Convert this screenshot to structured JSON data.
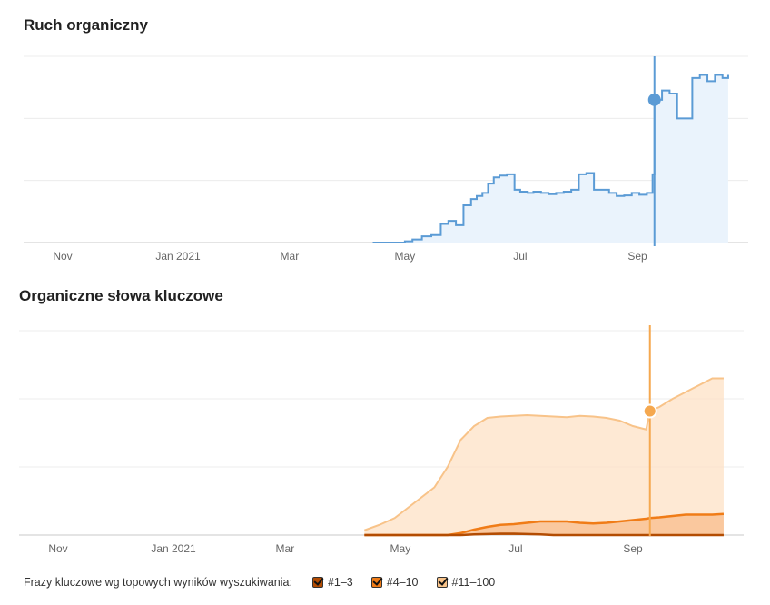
{
  "chart_data": [
    {
      "type": "area",
      "title": "Ruch organiczny",
      "x_ticks": [
        "Nov",
        "Jan 2021",
        "Mar",
        "May",
        "Jul",
        "Sep"
      ],
      "grid": true,
      "y_range": [
        0,
        3
      ],
      "colors": {
        "line": "#5b9bd5",
        "fill": "#eaf3fc"
      },
      "highlight": {
        "date": "2021-09-10",
        "value": 2.3
      },
      "series": [
        {
          "x": [
            "2021-04-14",
            "2021-05-01",
            "2021-05-05",
            "2021-05-10",
            "2021-05-15",
            "2021-05-20",
            "2021-05-24",
            "2021-05-28",
            "2021-06-01",
            "2021-06-05",
            "2021-06-08",
            "2021-06-11",
            "2021-06-14",
            "2021-06-17",
            "2021-06-20",
            "2021-06-24",
            "2021-06-28",
            "2021-07-01",
            "2021-07-05",
            "2021-07-08",
            "2021-07-12",
            "2021-07-16",
            "2021-07-20",
            "2021-07-24",
            "2021-07-28",
            "2021-08-01",
            "2021-08-05",
            "2021-08-09",
            "2021-08-13",
            "2021-08-17",
            "2021-08-21",
            "2021-08-25",
            "2021-08-29",
            "2021-09-02",
            "2021-09-06",
            "2021-09-09",
            "2021-09-10",
            "2021-09-14",
            "2021-09-18",
            "2021-09-22",
            "2021-09-26",
            "2021-09-30",
            "2021-10-04",
            "2021-10-08",
            "2021-10-12",
            "2021-10-16",
            "2021-10-19"
          ],
          "values": [
            0.0,
            0.02,
            0.05,
            0.1,
            0.12,
            0.3,
            0.35,
            0.28,
            0.6,
            0.7,
            0.75,
            0.8,
            0.95,
            1.05,
            1.08,
            1.1,
            0.85,
            0.82,
            0.8,
            0.82,
            0.8,
            0.78,
            0.8,
            0.82,
            0.85,
            1.1,
            1.12,
            0.85,
            0.85,
            0.8,
            0.75,
            0.76,
            0.8,
            0.77,
            0.8,
            1.1,
            2.3,
            2.45,
            2.4,
            2.0,
            2.0,
            2.65,
            2.7,
            2.6,
            2.7,
            2.65,
            2.7
          ]
        }
      ]
    },
    {
      "type": "area",
      "title": "Organiczne słowa kluczowe",
      "x_ticks": [
        "Nov",
        "Jan 2021",
        "Mar",
        "May",
        "Jul",
        "Sep"
      ],
      "grid": true,
      "y_range": [
        0,
        3
      ],
      "highlight": {
        "date": "2021-09-10",
        "value": 1.82
      },
      "legend": {
        "title": "Frazy kluczowe wg topowych wyników wyszukiwania:",
        "placement": "bottom-left"
      },
      "x": [
        "2021-04-12",
        "2021-04-20",
        "2021-04-28",
        "2021-05-05",
        "2021-05-12",
        "2021-05-19",
        "2021-05-26",
        "2021-06-02",
        "2021-06-09",
        "2021-06-16",
        "2021-06-23",
        "2021-06-30",
        "2021-07-07",
        "2021-07-14",
        "2021-07-21",
        "2021-07-28",
        "2021-08-04",
        "2021-08-11",
        "2021-08-18",
        "2021-08-25",
        "2021-09-01",
        "2021-09-08",
        "2021-09-10",
        "2021-09-15",
        "2021-09-22",
        "2021-09-29",
        "2021-10-06",
        "2021-10-13",
        "2021-10-19"
      ],
      "series": [
        {
          "name": "#11–100",
          "color": "#f8c389",
          "fill": "#fde2c6",
          "values": [
            0.07,
            0.15,
            0.25,
            0.4,
            0.55,
            0.7,
            1.0,
            1.4,
            1.6,
            1.72,
            1.74,
            1.75,
            1.76,
            1.75,
            1.74,
            1.73,
            1.75,
            1.74,
            1.72,
            1.68,
            1.6,
            1.55,
            1.82,
            1.88,
            2.0,
            2.1,
            2.2,
            2.3,
            2.3
          ]
        },
        {
          "name": "#4–10",
          "color": "#f07c17",
          "fill": "#f7b27a",
          "values": [
            0.0,
            0.0,
            0.0,
            0.0,
            0.0,
            0.0,
            0.0,
            0.03,
            0.08,
            0.12,
            0.15,
            0.16,
            0.18,
            0.2,
            0.2,
            0.2,
            0.18,
            0.17,
            0.18,
            0.2,
            0.22,
            0.24,
            0.25,
            0.26,
            0.28,
            0.3,
            0.3,
            0.3,
            0.31
          ]
        },
        {
          "name": "#1–3",
          "color": "#b34c02",
          "fill": "#b34c02",
          "values": [
            0.0,
            0.0,
            0.0,
            0.0,
            0.0,
            0.0,
            0.0,
            0.0,
            0.01,
            0.015,
            0.02,
            0.02,
            0.015,
            0.01,
            0.0,
            0.0,
            0.0,
            0.0,
            0.0,
            0.0,
            0.0,
            0.0,
            0.0,
            0.0,
            0.0,
            0.0,
            0.0,
            0.0,
            0.0
          ]
        }
      ]
    }
  ]
}
